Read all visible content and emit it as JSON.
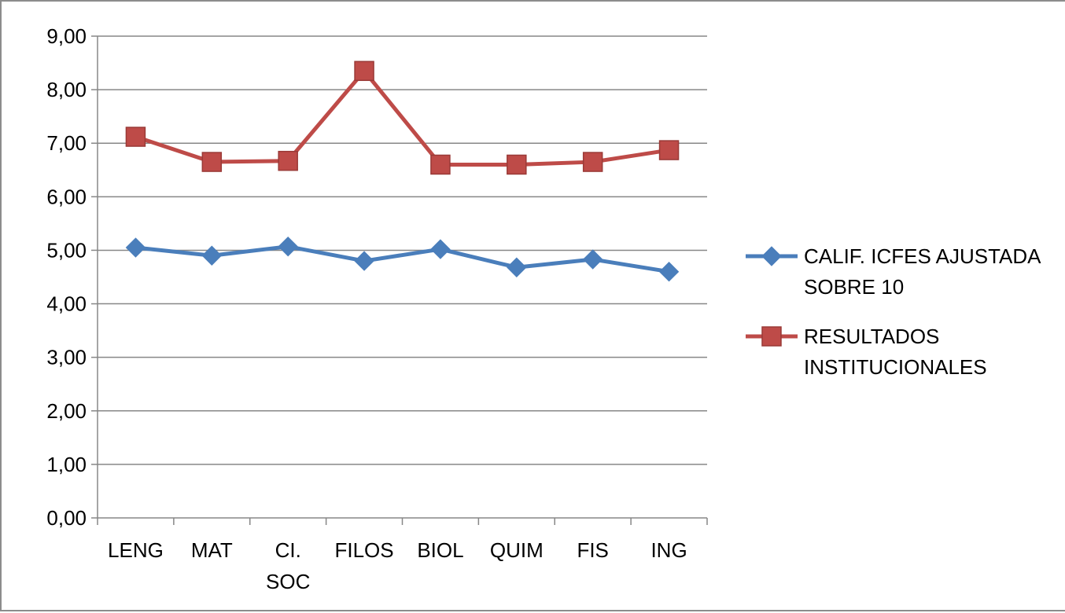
{
  "chart_data": {
    "type": "line",
    "title": "",
    "xlabel": "",
    "ylabel": "",
    "categories": [
      [
        "LENG"
      ],
      [
        "MAT"
      ],
      [
        "CI.",
        "SOC"
      ],
      [
        "FILOS"
      ],
      [
        "BIOL"
      ],
      [
        "QUIM"
      ],
      [
        "FIS"
      ],
      [
        "ING"
      ]
    ],
    "ylim": [
      0,
      9
    ],
    "ytick_step": 1,
    "ytick_labels": [
      "0,00",
      "1,00",
      "2,00",
      "3,00",
      "4,00",
      "5,00",
      "6,00",
      "7,00",
      "8,00",
      "9,00"
    ],
    "grid": "horizontal",
    "legend_position": "right",
    "series": [
      {
        "name_lines": [
          "CALIF. ICFES AJUSTADA",
          "SOBRE 10"
        ],
        "marker": "diamond",
        "color": "#4a7ebb",
        "values": [
          5.05,
          4.9,
          5.07,
          4.8,
          5.02,
          4.68,
          4.83,
          4.6
        ]
      },
      {
        "name_lines": [
          "RESULTADOS",
          "INSTITUCIONALES"
        ],
        "marker": "square",
        "color": "#be4b48",
        "values": [
          7.12,
          6.65,
          6.67,
          8.35,
          6.6,
          6.6,
          6.65,
          6.87
        ]
      }
    ]
  }
}
